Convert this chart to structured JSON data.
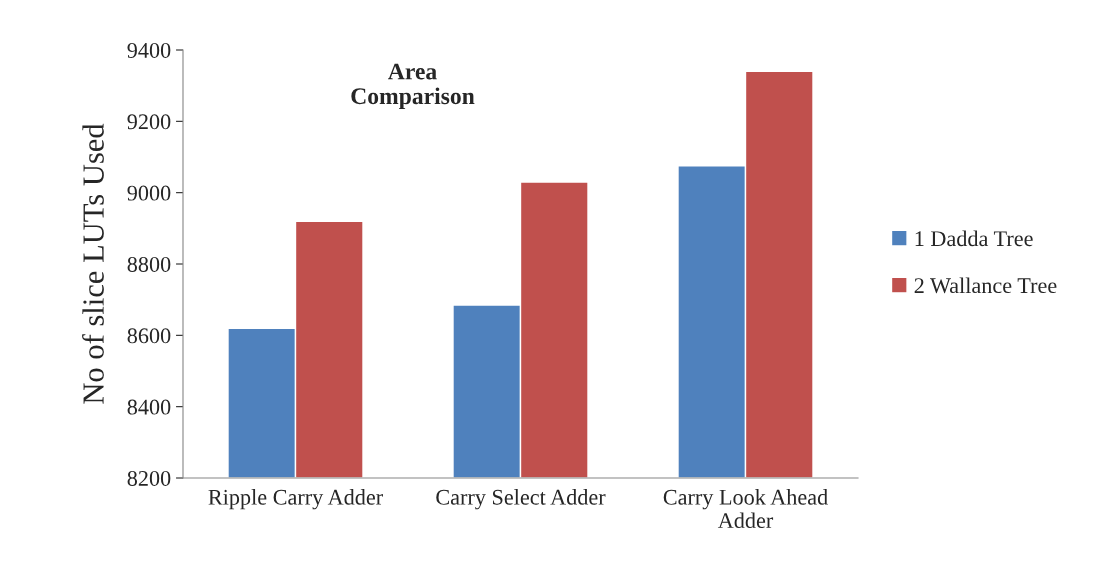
{
  "chart_data": {
    "type": "bar",
    "title": "Area Comparison",
    "ylabel": "No of slice LUTs Used",
    "categories": [
      "Ripple Carry Adder",
      "Carry Select Adder",
      "Carry Look Ahead Adder"
    ],
    "series": [
      {
        "name": "1 Dadda Tree",
        "color": "#4f81bd",
        "values": [
          8620,
          8685,
          9075
        ]
      },
      {
        "name": "2 Wallance Tree",
        "color": "#c0504d",
        "values": [
          8920,
          9030,
          9340
        ]
      }
    ],
    "ylim": [
      8200,
      9400
    ],
    "yticks": [
      8200,
      8400,
      8600,
      8800,
      9000,
      9200,
      9400
    ],
    "grid": false,
    "legend": "right"
  }
}
